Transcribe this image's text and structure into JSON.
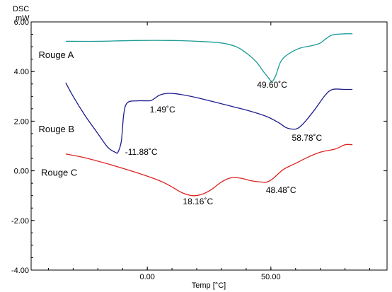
{
  "chart_data": {
    "type": "line",
    "title": "",
    "ylabel_line1": "DSC",
    "ylabel_line2": "mW",
    "xlabel": "Temp [°C]",
    "xlim": [
      -47,
      97
    ],
    "ylim": [
      -4.0,
      6.0
    ],
    "x_ticks": [
      0,
      50
    ],
    "x_tick_labels": [
      "0.00",
      "50.00"
    ],
    "y_ticks": [
      6,
      4,
      2,
      0,
      -2,
      -4
    ],
    "y_tick_labels": [
      "6.00",
      "4.00",
      "2.00",
      "0.00",
      "-2.00",
      "-4.00"
    ],
    "series": [
      {
        "name": "Rouge A",
        "color": "#1a9a96",
        "label_pos": [
          -44,
          4.55
        ],
        "points": [
          [
            -33,
            5.22
          ],
          [
            -20,
            5.22
          ],
          [
            -5,
            5.25
          ],
          [
            10,
            5.25
          ],
          [
            20,
            5.22
          ],
          [
            30,
            5.15
          ],
          [
            36,
            5.0
          ],
          [
            40,
            4.75
          ],
          [
            44,
            4.4
          ],
          [
            47,
            4.0
          ],
          [
            49,
            3.75
          ],
          [
            50.5,
            3.6
          ],
          [
            52,
            3.85
          ],
          [
            54,
            4.4
          ],
          [
            57,
            4.7
          ],
          [
            62,
            4.95
          ],
          [
            67,
            5.05
          ],
          [
            70,
            5.15
          ],
          [
            72,
            5.3
          ],
          [
            75,
            5.48
          ],
          [
            80,
            5.52
          ],
          [
            83,
            5.52
          ]
        ]
      },
      {
        "name": "Rouge B",
        "color": "#1c1c8c",
        "label_pos": [
          -44,
          1.55
        ],
        "points": [
          [
            -33,
            3.55
          ],
          [
            -30,
            3.0
          ],
          [
            -25,
            2.2
          ],
          [
            -20,
            1.5
          ],
          [
            -16,
            0.95
          ],
          [
            -13,
            0.75
          ],
          [
            -11.88,
            0.75
          ],
          [
            -10.5,
            1.2
          ],
          [
            -9.5,
            2.3
          ],
          [
            -8,
            2.75
          ],
          [
            -4,
            2.82
          ],
          [
            0,
            2.82
          ],
          [
            1.5,
            2.83
          ],
          [
            3,
            2.92
          ],
          [
            5,
            3.05
          ],
          [
            8,
            3.12
          ],
          [
            12,
            3.1
          ],
          [
            20,
            2.95
          ],
          [
            30,
            2.7
          ],
          [
            40,
            2.45
          ],
          [
            48,
            2.2
          ],
          [
            53,
            1.95
          ],
          [
            56,
            1.75
          ],
          [
            58.78,
            1.68
          ],
          [
            61,
            1.72
          ],
          [
            64,
            2.0
          ],
          [
            68,
            2.5
          ],
          [
            72,
            3.05
          ],
          [
            75,
            3.28
          ],
          [
            80,
            3.28
          ],
          [
            83,
            3.28
          ]
        ]
      },
      {
        "name": "Rouge C",
        "color": "#dd2222",
        "label_pos": [
          -43,
          -0.2
        ],
        "points": [
          [
            -33,
            0.68
          ],
          [
            -25,
            0.52
          ],
          [
            -15,
            0.25
          ],
          [
            -5,
            -0.05
          ],
          [
            5,
            -0.4
          ],
          [
            10,
            -0.65
          ],
          [
            14,
            -0.88
          ],
          [
            18.16,
            -1.0
          ],
          [
            22,
            -0.95
          ],
          [
            26,
            -0.75
          ],
          [
            30,
            -0.45
          ],
          [
            34,
            -0.28
          ],
          [
            38,
            -0.3
          ],
          [
            42,
            -0.4
          ],
          [
            46,
            -0.45
          ],
          [
            48.48,
            -0.45
          ],
          [
            51,
            -0.3
          ],
          [
            55,
            0.05
          ],
          [
            60,
            0.3
          ],
          [
            65,
            0.55
          ],
          [
            70,
            0.75
          ],
          [
            76,
            0.88
          ],
          [
            80,
            1.05
          ],
          [
            83,
            1.05
          ]
        ]
      }
    ],
    "annotations": [
      {
        "text": "49.60˚C",
        "x": 50.5,
        "y": 3.35,
        "anchor": "middle",
        "color": "#000000"
      },
      {
        "text": "1.49˚C",
        "x": 1.0,
        "y": 2.35,
        "anchor": "start",
        "color": "#000000"
      },
      {
        "text": "-11.88˚C",
        "x": -9.0,
        "y": 0.65,
        "anchor": "start",
        "color": "#000000"
      },
      {
        "text": "58.78˚C",
        "x": 58.5,
        "y": 1.22,
        "anchor": "start",
        "color": "#000000"
      },
      {
        "text": "18.16˚C",
        "x": 20.5,
        "y": -1.35,
        "anchor": "middle",
        "color": "#000000"
      },
      {
        "text": "48.48˚C",
        "x": 48.0,
        "y": -0.9,
        "anchor": "start",
        "color": "#000000"
      }
    ],
    "axis_color": "#000000",
    "plot_border": true,
    "grid": false
  }
}
